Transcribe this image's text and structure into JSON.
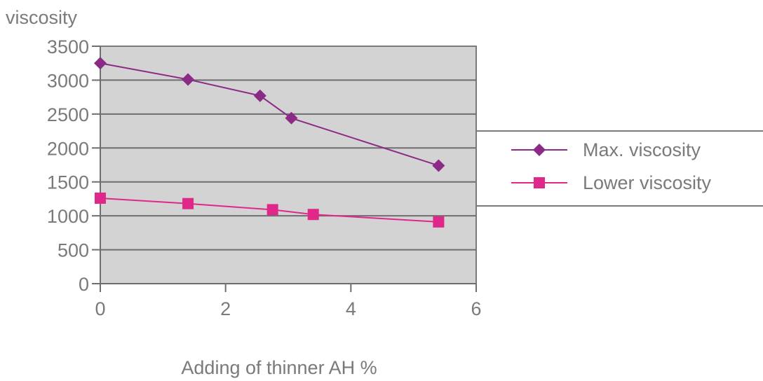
{
  "chart_data": {
    "type": "scatter",
    "title": "",
    "ylabel": "viscosity",
    "xlabel": "Adding of thinner AH %",
    "xlim": [
      0,
      6
    ],
    "ylim": [
      0,
      3500
    ],
    "xticks": [
      0,
      2,
      4,
      6
    ],
    "yticks": [
      0,
      500,
      1000,
      1500,
      2000,
      2500,
      3000,
      3500
    ],
    "grid": "horizontal",
    "legend_position": "right",
    "plot_background": "#d3d3d3",
    "series": [
      {
        "name": "Max. viscosity",
        "color": "#8b2b86",
        "marker": "diamond",
        "x": [
          0,
          1.4,
          2.55,
          3.05,
          5.4
        ],
        "y": [
          3250,
          3010,
          2770,
          2440,
          1740
        ]
      },
      {
        "name": "Lower viscosity",
        "color": "#e0288a",
        "marker": "square",
        "x": [
          0,
          1.4,
          2.75,
          3.4,
          5.4
        ],
        "y": [
          1260,
          1180,
          1090,
          1020,
          910
        ]
      }
    ]
  }
}
